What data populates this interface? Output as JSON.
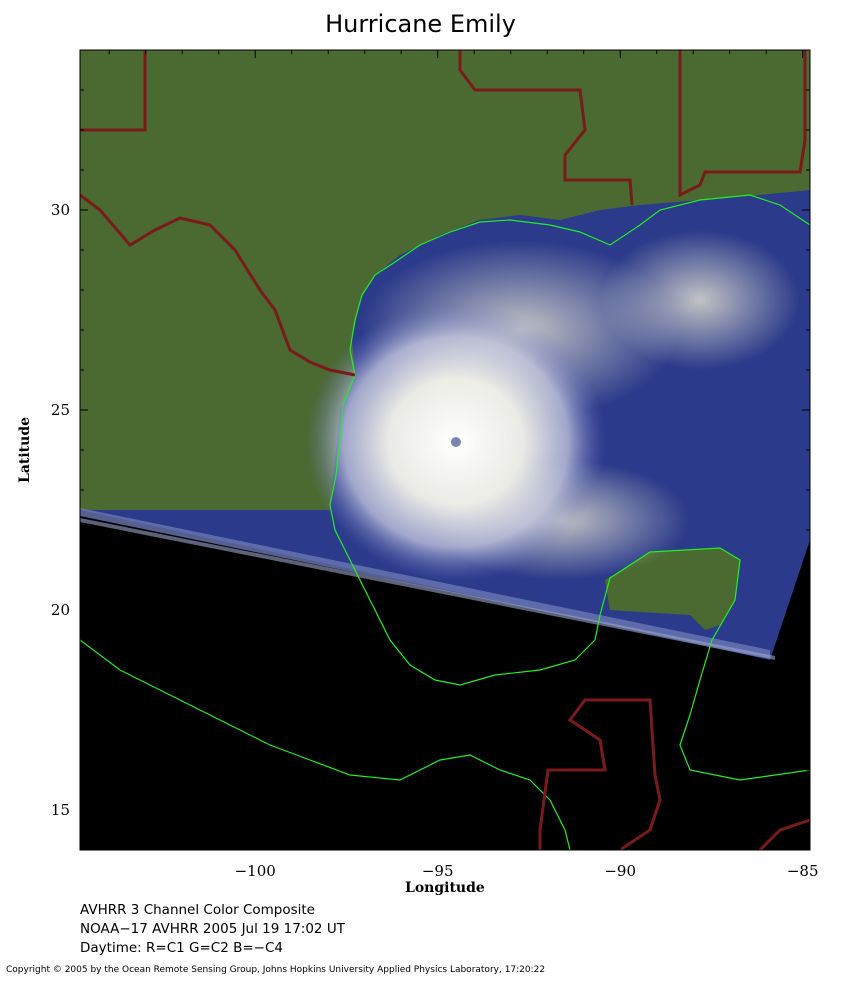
{
  "title": "Hurricane Emily",
  "map": {
    "lon_range": [
      -104.8,
      -84.8
    ],
    "lat_range": [
      14.0,
      34.0
    ],
    "x_ticks": [
      "−100",
      "−95",
      "−90",
      "−85"
    ],
    "x_tick_values": [
      -100,
      -95,
      -90,
      -85
    ],
    "y_ticks": [
      "15",
      "20",
      "25",
      "30"
    ],
    "y_tick_values": [
      15,
      20,
      25,
      30
    ],
    "xlabel": "Longitude",
    "ylabel": "Latitude",
    "storm_center": {
      "lon": -94.5,
      "lat": 24.2
    },
    "colors": {
      "land": "#4a6a32",
      "ocean": "#2b3a8a",
      "coastline": "#22ee22",
      "border": "#7a1a1a",
      "nodata": "#000000",
      "cloud": "#ffffff"
    }
  },
  "caption": {
    "line1": "AVHRR 3 Channel Color Composite",
    "line2": "NOAA−17 AVHRR 2005 Jul 19 17:02 UT",
    "line3": "Daytime: R=C1 G=C2 B=−C4"
  },
  "copyright": "Copyright © 2005 by the Ocean Remote Sensing Group, Johns Hopkins University Applied Physics Laboratory, 17:20:22"
}
